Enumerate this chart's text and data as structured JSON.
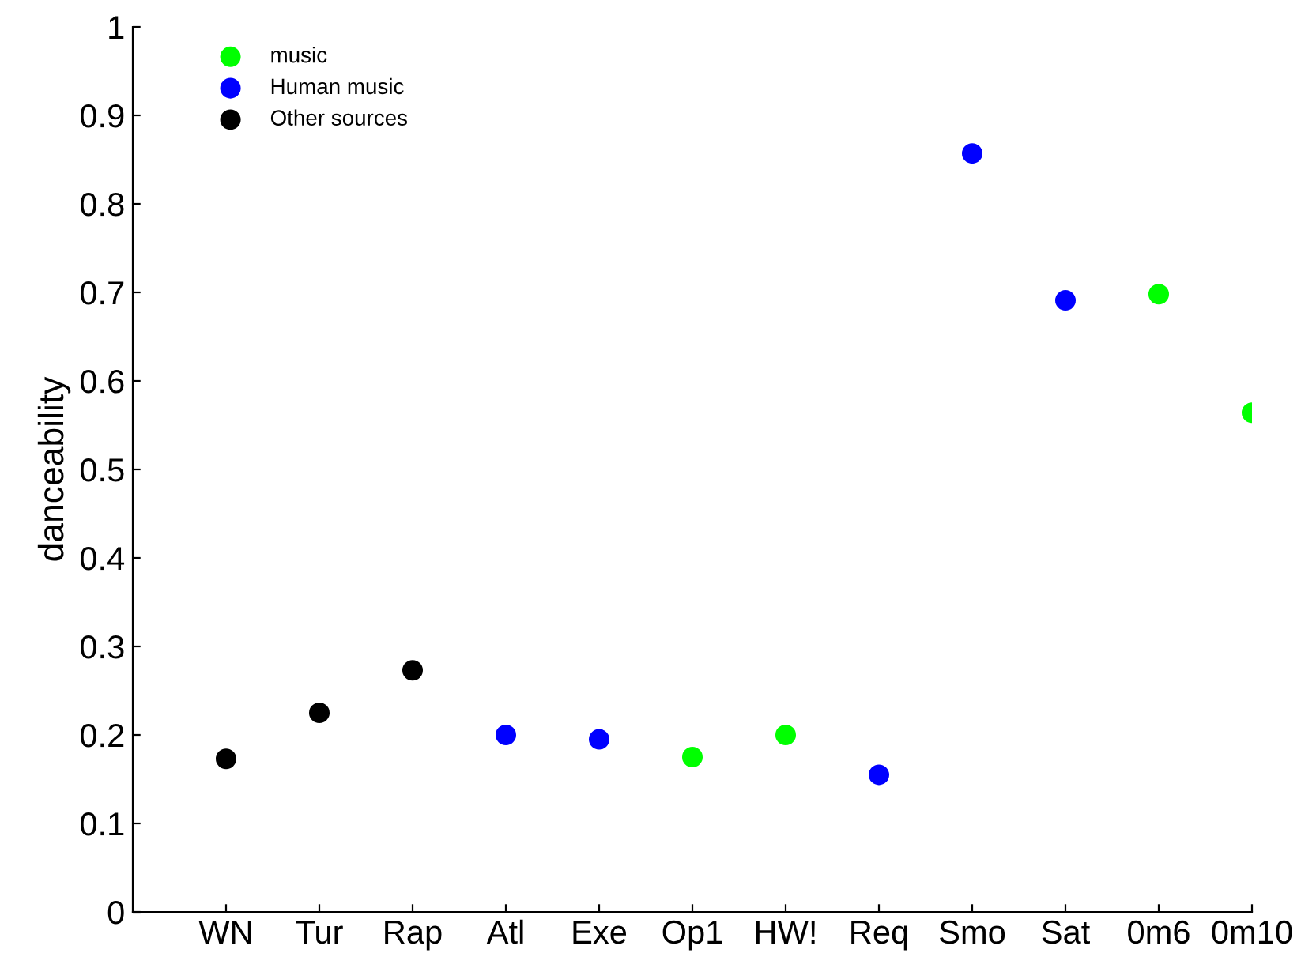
{
  "chart_data": {
    "type": "scatter",
    "ylabel": "danceability",
    "categories": [
      "WN",
      "Tur",
      "Rap",
      "Atl",
      "Exe",
      "Op1",
      "HW!",
      "Req",
      "Smo",
      "Sat",
      "0m6",
      "0m10"
    ],
    "series": [
      {
        "name": "music",
        "color": "#00ff00",
        "values": [
          null,
          null,
          null,
          null,
          null,
          0.175,
          0.2,
          null,
          null,
          null,
          0.698,
          0.564
        ]
      },
      {
        "name": "Human music",
        "color": "#0000ff",
        "values": [
          null,
          null,
          null,
          0.2,
          0.195,
          null,
          null,
          0.155,
          0.857,
          0.691,
          null,
          null
        ]
      },
      {
        "name": "Other sources",
        "color": "#000000",
        "values": [
          0.173,
          0.225,
          0.273,
          null,
          null,
          null,
          null,
          null,
          null,
          null,
          null,
          null
        ]
      }
    ],
    "ylim": [
      0,
      1
    ],
    "yticks": [
      0,
      0.1,
      0.2,
      0.3,
      0.4,
      0.5,
      0.6,
      0.7,
      0.8,
      0.9,
      1
    ],
    "grid": false,
    "legend": "top left",
    "marker": "circle"
  }
}
